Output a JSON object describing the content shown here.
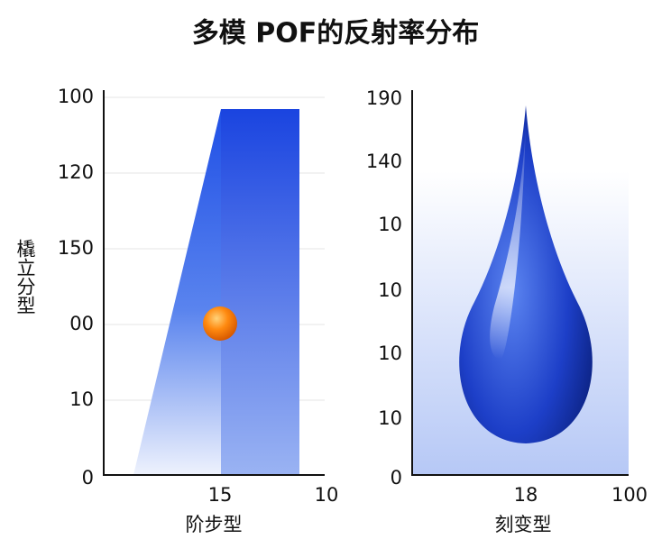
{
  "header": {
    "title": "多模 POF的反射率分布"
  },
  "left_panel": {
    "y_label": "橇立分型",
    "y_ticks": [
      "100",
      "120",
      "150",
      "00",
      "10",
      "0"
    ],
    "x_ticks": [
      "15",
      "10"
    ],
    "x_label": "阶步型"
  },
  "right_panel": {
    "y_ticks": [
      "190",
      "140",
      "10",
      "10",
      "10",
      "10",
      "0"
    ],
    "x_ticks": [
      "18",
      "100"
    ],
    "x_label": "刻变型"
  }
}
